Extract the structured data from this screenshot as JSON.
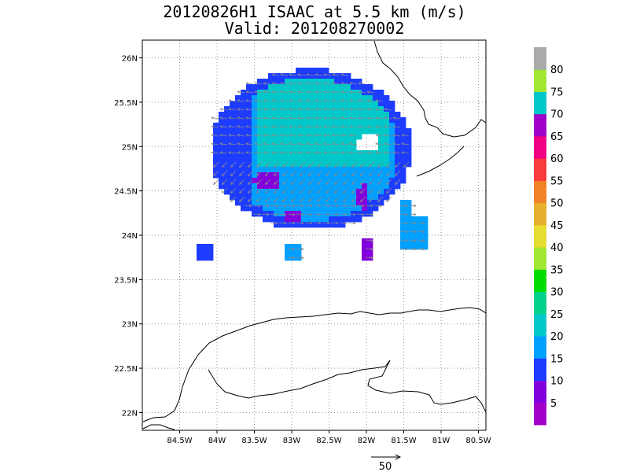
{
  "title": {
    "line1": "20120826H1 ISAAC at 5.5 km (m/s)",
    "line2": "Valid: 201208270002"
  },
  "map": {
    "lon_range": [
      -85.0,
      -80.4
    ],
    "lat_range": [
      21.8,
      26.2
    ],
    "x_ticks": [
      {
        "lon": -84.5,
        "label": "84.5W"
      },
      {
        "lon": -84.0,
        "label": "84W"
      },
      {
        "lon": -83.5,
        "label": "83.5W"
      },
      {
        "lon": -83.0,
        "label": "83W"
      },
      {
        "lon": -82.5,
        "label": "82.5W"
      },
      {
        "lon": -82.0,
        "label": "82W"
      },
      {
        "lon": -81.5,
        "label": "81.5W"
      },
      {
        "lon": -81.0,
        "label": "81W"
      },
      {
        "lon": -80.5,
        "label": "80.5W"
      }
    ],
    "y_ticks": [
      {
        "lat": 26.0,
        "label": "26N"
      },
      {
        "lat": 25.5,
        "label": "25.5N"
      },
      {
        "lat": 25.0,
        "label": "25N"
      },
      {
        "lat": 24.5,
        "label": "24.5N"
      },
      {
        "lat": 24.0,
        "label": "24N"
      },
      {
        "lat": 23.5,
        "label": "23.5N"
      },
      {
        "lat": 23.0,
        "label": "23N"
      },
      {
        "lat": 22.5,
        "label": "22.5N"
      },
      {
        "lat": 22.0,
        "label": "22N"
      }
    ],
    "grid": "dotted"
  },
  "colorbar": {
    "colors": [
      "#a000c8",
      "#8200dc",
      "#1e3cff",
      "#00a0ff",
      "#00c8c8",
      "#00d28c",
      "#00dc00",
      "#a0e632",
      "#e6dc32",
      "#e6af2d",
      "#f08228",
      "#fa3c3c",
      "#f00082",
      "#a000c8",
      "#00c8c8",
      "#a0e632",
      "#aaaaaa"
    ],
    "labels": [
      "5",
      "10",
      "15",
      "20",
      "25",
      "30",
      "35",
      "40",
      "45",
      "50",
      "55",
      "60",
      "65",
      "70",
      "75",
      "80"
    ]
  },
  "reference_vector": {
    "label": "50"
  }
}
